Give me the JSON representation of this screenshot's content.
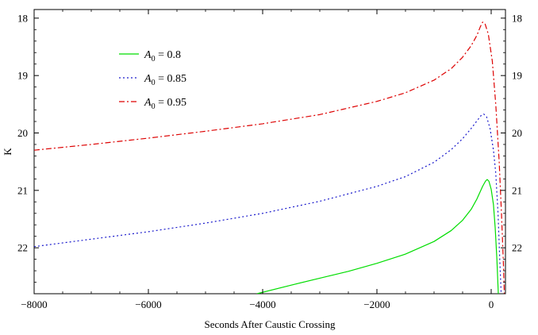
{
  "chart_data": {
    "type": "line",
    "xlabel": "Seconds After Caustic Crossing",
    "ylabel": "K",
    "xlim": [
      -8000,
      250
    ],
    "ylim": [
      22.8,
      17.85
    ],
    "y_inverted": true,
    "x_ticks": [
      -8000,
      -6000,
      -4000,
      -2000,
      0
    ],
    "x_tick_labels": [
      "−8000",
      "−6000",
      "−4000",
      "−2000",
      "0"
    ],
    "y_ticks": [
      18,
      19,
      20,
      21,
      22
    ],
    "y_tick_labels": [
      "18",
      "19",
      "20",
      "21",
      "22"
    ],
    "mirror_y_right": true,
    "grid": false,
    "legend_position": "top-left",
    "series": [
      {
        "name": "A0 = 0.8",
        "legend_base": "A",
        "legend_sub": "0",
        "legend_value": " = 0.8",
        "color": "#00dd00",
        "dash": "solid",
        "points": [
          [
            -4100,
            22.8
          ],
          [
            -3500,
            22.65
          ],
          [
            -3000,
            22.53
          ],
          [
            -2500,
            22.41
          ],
          [
            -2000,
            22.27
          ],
          [
            -1500,
            22.11
          ],
          [
            -1000,
            21.89
          ],
          [
            -700,
            21.7
          ],
          [
            -500,
            21.52
          ],
          [
            -350,
            21.33
          ],
          [
            -250,
            21.15
          ],
          [
            -150,
            20.93
          ],
          [
            -100,
            20.84
          ],
          [
            -70,
            20.81
          ],
          [
            -40,
            20.84
          ],
          [
            0,
            20.98
          ],
          [
            40,
            21.25
          ],
          [
            70,
            21.65
          ],
          [
            100,
            22.2
          ],
          [
            125,
            22.8
          ]
        ]
      },
      {
        "name": "A0 = 0.85",
        "legend_base": "A",
        "legend_sub": "0",
        "legend_value": " = 0.85",
        "color": "#1a1acc",
        "dash": "dot",
        "points": [
          [
            -8000,
            21.98
          ],
          [
            -7000,
            21.85
          ],
          [
            -6000,
            21.72
          ],
          [
            -5000,
            21.57
          ],
          [
            -4000,
            21.4
          ],
          [
            -3000,
            21.19
          ],
          [
            -2000,
            20.93
          ],
          [
            -1500,
            20.76
          ],
          [
            -1000,
            20.51
          ],
          [
            -700,
            20.29
          ],
          [
            -500,
            20.1
          ],
          [
            -350,
            19.92
          ],
          [
            -250,
            19.79
          ],
          [
            -180,
            19.7
          ],
          [
            -130,
            19.67
          ],
          [
            -80,
            19.72
          ],
          [
            -20,
            19.92
          ],
          [
            40,
            20.3
          ],
          [
            80,
            20.7
          ],
          [
            120,
            21.4
          ],
          [
            150,
            22.2
          ],
          [
            175,
            22.8
          ]
        ]
      },
      {
        "name": "A0 = 0.95",
        "legend_base": "A",
        "legend_sub": "0",
        "legend_value": " = 0.95",
        "color": "#dd0000",
        "dash": "dashdot",
        "points": [
          [
            -8000,
            20.3
          ],
          [
            -7000,
            20.2
          ],
          [
            -6000,
            20.09
          ],
          [
            -5000,
            19.97
          ],
          [
            -4000,
            19.84
          ],
          [
            -3000,
            19.68
          ],
          [
            -2000,
            19.45
          ],
          [
            -1500,
            19.3
          ],
          [
            -1000,
            19.08
          ],
          [
            -700,
            18.88
          ],
          [
            -500,
            18.68
          ],
          [
            -350,
            18.48
          ],
          [
            -250,
            18.3
          ],
          [
            -190,
            18.15
          ],
          [
            -150,
            18.07
          ],
          [
            -110,
            18.09
          ],
          [
            -50,
            18.28
          ],
          [
            20,
            18.75
          ],
          [
            80,
            19.5
          ],
          [
            140,
            20.5
          ],
          [
            180,
            21.4
          ],
          [
            215,
            22.3
          ],
          [
            230,
            22.8
          ]
        ]
      }
    ]
  }
}
